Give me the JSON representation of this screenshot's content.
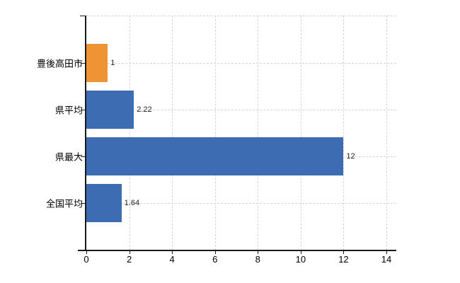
{
  "chart_data": {
    "type": "bar",
    "orientation": "horizontal",
    "title": "",
    "xlabel": "",
    "ylabel": "",
    "categories": [
      "豊後高田市",
      "県平均",
      "県最大",
      "全国平均"
    ],
    "values": [
      1,
      2.22,
      12,
      1.64
    ],
    "value_labels": [
      "1",
      "2.22",
      "12",
      "1.64"
    ],
    "bar_colors": [
      "#EE9434",
      "#3E6CB2",
      "#3E6CB2",
      "#3E6CB2"
    ],
    "xlim": [
      0,
      14
    ],
    "x_ticks": [
      0,
      2,
      4,
      6,
      8,
      10,
      12,
      14
    ],
    "x_tick_labels": [
      "0",
      "2",
      "4",
      "6",
      "8",
      "10",
      "12",
      "14"
    ],
    "grid": true,
    "legend": false
  },
  "style": {
    "background": "#ffffff",
    "grid_color": "#d6d6d6",
    "axis_color": "#1a1a1a",
    "category_label_color": "#000000",
    "tick_label_color": "#000000",
    "value_label_color": "#222222"
  }
}
